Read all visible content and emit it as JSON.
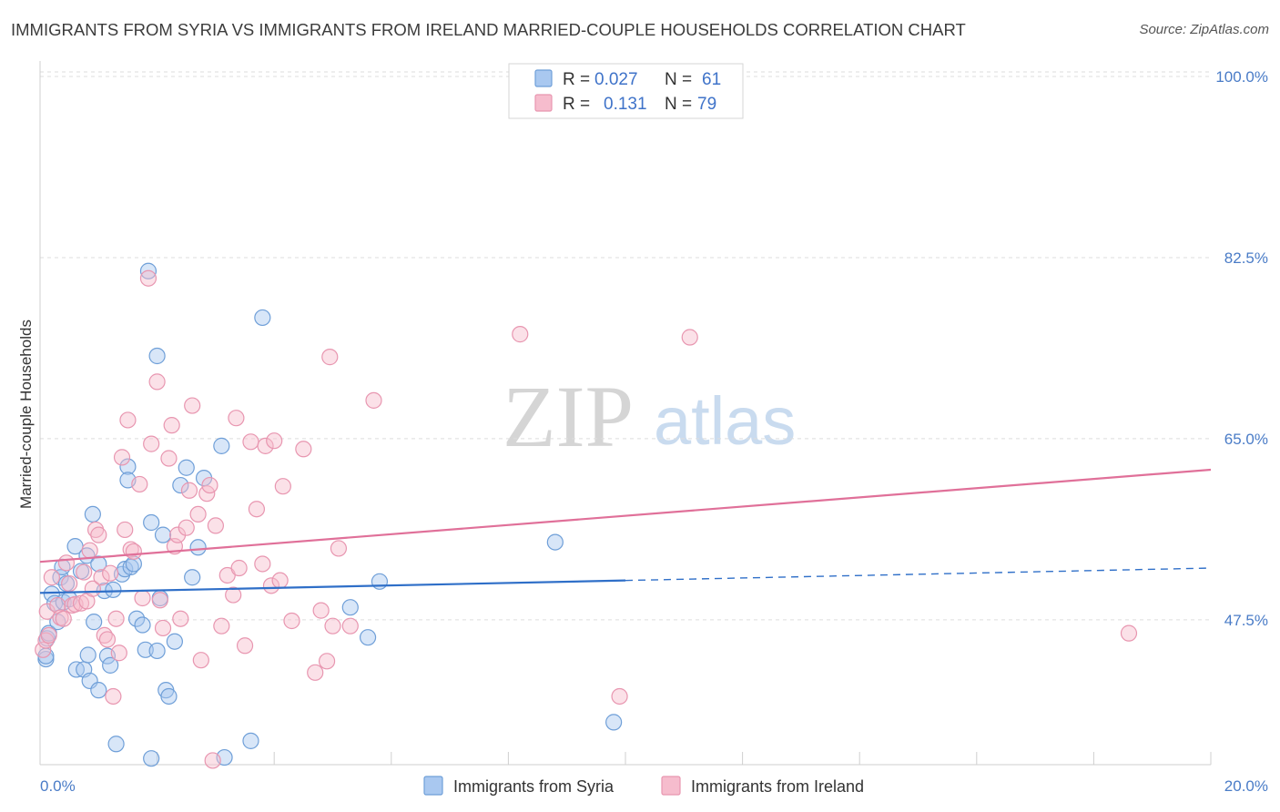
{
  "title": "IMMIGRANTS FROM SYRIA VS IMMIGRANTS FROM IRELAND MARRIED-COUPLE HOUSEHOLDS CORRELATION CHART",
  "source": "Source: ZipAtlas.com",
  "watermark": {
    "zip": "ZIP",
    "atlas": "atlas"
  },
  "legend": {
    "rows": [
      {
        "r_label": "R =",
        "r_value": "0.027",
        "n_label": "N =",
        "n_value": "61"
      },
      {
        "r_label": "R =",
        "r_value": "0.131",
        "n_label": "N =",
        "n_value": "79"
      }
    ]
  },
  "colors": {
    "syria_fill": "#a9c8f0",
    "syria_stroke": "#6f9fd8",
    "syria_line": "#2f6fc8",
    "ireland_fill": "#f6bccd",
    "ireland_stroke": "#e896b0",
    "ireland_line": "#e07099",
    "tick_text": "#4a7cc7",
    "grid": "#dddddd"
  },
  "chart_data": {
    "type": "scatter",
    "title": "IMMIGRANTS FROM SYRIA VS IMMIGRANTS FROM IRELAND MARRIED-COUPLE HOUSEHOLDS CORRELATION CHART",
    "xlabel": "",
    "ylabel": "Married-couple Households",
    "xlim": [
      0,
      20
    ],
    "ylim": [
      33.5,
      101.5
    ],
    "x_tick_labels": [
      "0.0%",
      "20.0%"
    ],
    "y_ticks": [
      47.5,
      65.0,
      82.5,
      100.0
    ],
    "y_tick_labels": [
      "47.5%",
      "65.0%",
      "82.5%",
      "100.0%"
    ],
    "grid": true,
    "legend_position": "top-center",
    "series": [
      {
        "name": "Immigrants from Syria",
        "r": 0.027,
        "n": 61,
        "trend": {
          "x": [
            0,
            10,
            20
          ],
          "y": [
            50.1,
            51.3,
            52.5
          ],
          "dashed_from_x": 10
        },
        "points": [
          [
            0.1,
            43.7
          ],
          [
            0.1,
            44.0
          ],
          [
            0.12,
            45.7
          ],
          [
            0.15,
            46.2
          ],
          [
            0.2,
            50.0
          ],
          [
            0.25,
            49.1
          ],
          [
            0.3,
            47.3
          ],
          [
            0.35,
            51.6
          ],
          [
            0.38,
            52.6
          ],
          [
            0.4,
            49.2
          ],
          [
            0.45,
            51.0
          ],
          [
            0.5,
            49.5
          ],
          [
            0.6,
            54.6
          ],
          [
            0.62,
            42.7
          ],
          [
            0.7,
            52.2
          ],
          [
            0.75,
            42.7
          ],
          [
            0.8,
            53.7
          ],
          [
            0.82,
            44.1
          ],
          [
            0.85,
            41.6
          ],
          [
            0.9,
            57.7
          ],
          [
            0.92,
            47.3
          ],
          [
            1.0,
            52.9
          ],
          [
            1.0,
            40.7
          ],
          [
            1.1,
            50.3
          ],
          [
            1.15,
            44.0
          ],
          [
            1.2,
            43.1
          ],
          [
            1.25,
            50.4
          ],
          [
            1.3,
            35.5
          ],
          [
            1.4,
            51.9
          ],
          [
            1.45,
            52.4
          ],
          [
            1.5,
            62.3
          ],
          [
            1.5,
            61.0
          ],
          [
            1.55,
            52.6
          ],
          [
            1.6,
            52.9
          ],
          [
            1.65,
            47.6
          ],
          [
            1.75,
            47.0
          ],
          [
            1.8,
            44.6
          ],
          [
            1.85,
            81.2
          ],
          [
            1.9,
            56.9
          ],
          [
            1.9,
            34.1
          ],
          [
            2.0,
            44.5
          ],
          [
            2.0,
            73.0
          ],
          [
            2.05,
            49.6
          ],
          [
            2.1,
            55.7
          ],
          [
            2.15,
            40.7
          ],
          [
            2.2,
            40.1
          ],
          [
            2.3,
            45.4
          ],
          [
            2.4,
            60.5
          ],
          [
            2.5,
            62.2
          ],
          [
            2.6,
            51.6
          ],
          [
            2.7,
            54.5
          ],
          [
            2.8,
            61.2
          ],
          [
            3.1,
            64.3
          ],
          [
            3.15,
            34.2
          ],
          [
            3.6,
            35.8
          ],
          [
            3.8,
            76.7
          ],
          [
            5.3,
            48.7
          ],
          [
            5.6,
            45.8
          ],
          [
            5.8,
            51.2
          ],
          [
            8.8,
            55.0
          ],
          [
            9.8,
            37.6
          ]
        ]
      },
      {
        "name": "Immigrants from Ireland",
        "r": 0.131,
        "n": 79,
        "trend": {
          "x": [
            0,
            20
          ],
          "y": [
            53.1,
            62.0
          ]
        },
        "points": [
          [
            0.05,
            44.6
          ],
          [
            0.1,
            45.5
          ],
          [
            0.12,
            48.3
          ],
          [
            0.15,
            46.0
          ],
          [
            0.2,
            51.6
          ],
          [
            0.3,
            48.9
          ],
          [
            0.35,
            47.7
          ],
          [
            0.4,
            47.6
          ],
          [
            0.45,
            53.0
          ],
          [
            0.5,
            51.0
          ],
          [
            0.55,
            48.9
          ],
          [
            0.6,
            49.0
          ],
          [
            0.7,
            49.1
          ],
          [
            0.75,
            52.1
          ],
          [
            0.8,
            49.3
          ],
          [
            0.85,
            54.2
          ],
          [
            0.9,
            50.5
          ],
          [
            0.95,
            56.2
          ],
          [
            1.0,
            55.7
          ],
          [
            1.05,
            51.6
          ],
          [
            1.1,
            46.0
          ],
          [
            1.15,
            45.6
          ],
          [
            1.2,
            52.0
          ],
          [
            1.25,
            40.1
          ],
          [
            1.3,
            47.6
          ],
          [
            1.35,
            44.3
          ],
          [
            1.4,
            63.2
          ],
          [
            1.45,
            56.2
          ],
          [
            1.5,
            66.8
          ],
          [
            1.55,
            54.3
          ],
          [
            1.6,
            54.1
          ],
          [
            1.7,
            60.6
          ],
          [
            1.75,
            49.6
          ],
          [
            1.85,
            80.5
          ],
          [
            1.9,
            64.5
          ],
          [
            2.0,
            70.5
          ],
          [
            2.05,
            49.4
          ],
          [
            2.1,
            46.7
          ],
          [
            2.2,
            63.1
          ],
          [
            2.25,
            66.3
          ],
          [
            2.3,
            54.6
          ],
          [
            2.35,
            55.7
          ],
          [
            2.4,
            47.6
          ],
          [
            2.5,
            56.4
          ],
          [
            2.55,
            60.0
          ],
          [
            2.6,
            68.2
          ],
          [
            2.7,
            57.7
          ],
          [
            2.75,
            43.6
          ],
          [
            2.85,
            59.7
          ],
          [
            2.9,
            60.5
          ],
          [
            2.95,
            33.9
          ],
          [
            3.0,
            56.6
          ],
          [
            3.1,
            46.9
          ],
          [
            3.2,
            51.8
          ],
          [
            3.3,
            49.9
          ],
          [
            3.35,
            67.0
          ],
          [
            3.4,
            52.5
          ],
          [
            3.5,
            45.0
          ],
          [
            3.6,
            64.7
          ],
          [
            3.7,
            58.2
          ],
          [
            3.8,
            52.9
          ],
          [
            3.85,
            64.3
          ],
          [
            3.95,
            50.8
          ],
          [
            4.0,
            64.8
          ],
          [
            4.1,
            51.3
          ],
          [
            4.15,
            60.4
          ],
          [
            4.3,
            47.4
          ],
          [
            4.5,
            64.0
          ],
          [
            4.7,
            42.4
          ],
          [
            4.8,
            48.4
          ],
          [
            4.9,
            43.5
          ],
          [
            4.95,
            72.9
          ],
          [
            5.0,
            46.9
          ],
          [
            5.1,
            54.4
          ],
          [
            5.3,
            46.9
          ],
          [
            5.7,
            68.7
          ],
          [
            8.2,
            75.1
          ],
          [
            9.9,
            40.1
          ],
          [
            11.1,
            74.8
          ],
          [
            18.6,
            46.2
          ]
        ]
      }
    ]
  },
  "bottom_legend": [
    "Immigrants from Syria",
    "Immigrants from Ireland"
  ]
}
